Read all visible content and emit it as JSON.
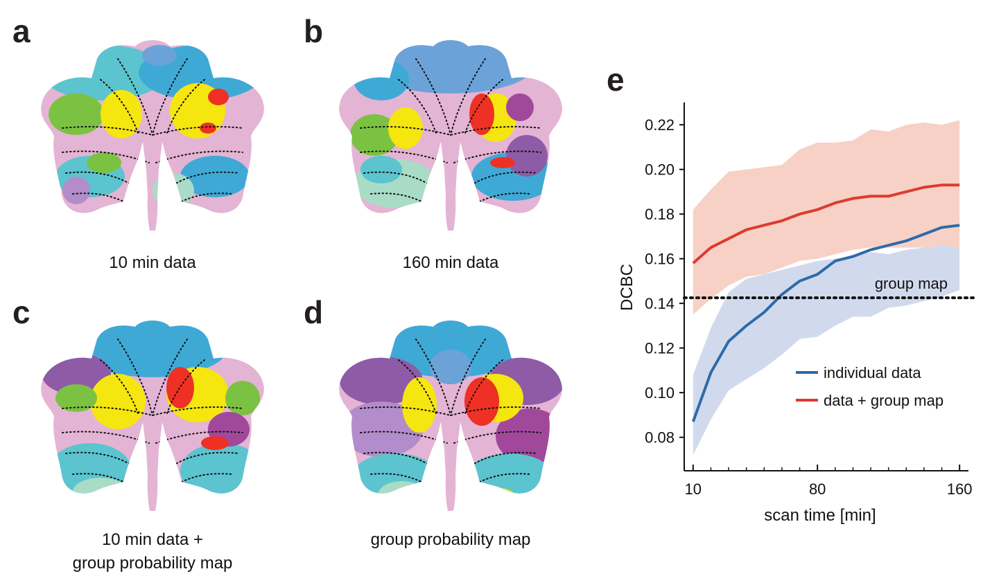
{
  "panels": {
    "a": {
      "letter": "a",
      "caption": "10 min data"
    },
    "b": {
      "letter": "b",
      "caption": "160 min data"
    },
    "c": {
      "letter": "c",
      "caption_line1": "10 min data +",
      "caption_line2": "group probability map"
    },
    "d": {
      "letter": "d",
      "caption": "group probability map"
    },
    "e": {
      "letter": "e"
    }
  },
  "parcel_colors": {
    "pink": "#e4b4d4",
    "yellow": "#f5e610",
    "red": "#ee3124",
    "green": "#7cc242",
    "teal": "#5bc4cf",
    "cyan": "#3fa9d6",
    "lightblue": "#6ba2d8",
    "mint": "#a9dcc6",
    "purple": "#8e5ba6",
    "magenta": "#a1489a",
    "darkteal": "#0f5c62",
    "lavender": "#b28ccb"
  },
  "chart_data": {
    "type": "line",
    "xlabel": "scan time [min]",
    "ylabel": "DCBC",
    "xlim": [
      5,
      165
    ],
    "ylim": [
      0.065,
      0.23
    ],
    "xticks": [
      10,
      80,
      160
    ],
    "xtick_labels": [
      "10",
      "80",
      "160"
    ],
    "yticks": [
      0.08,
      0.1,
      0.12,
      0.14,
      0.16,
      0.18,
      0.2,
      0.22
    ],
    "ytick_labels": [
      "0.08",
      "0.10",
      "0.12",
      "0.14",
      "0.16",
      "0.18",
      "0.20",
      "0.22"
    ],
    "x": [
      10,
      20,
      30,
      40,
      50,
      60,
      70,
      80,
      90,
      100,
      110,
      120,
      130,
      140,
      150,
      160
    ],
    "series": [
      {
        "name": "individual data",
        "color": "#2e6aa9",
        "band_color": "#c9d4ea",
        "values": [
          0.087,
          0.109,
          0.123,
          0.13,
          0.136,
          0.144,
          0.15,
          0.153,
          0.159,
          0.161,
          0.164,
          0.166,
          0.168,
          0.171,
          0.174,
          0.175
        ],
        "lower": [
          0.072,
          0.088,
          0.101,
          0.106,
          0.111,
          0.117,
          0.124,
          0.125,
          0.13,
          0.134,
          0.134,
          0.138,
          0.139,
          0.141,
          0.143,
          0.146
        ],
        "upper": [
          0.108,
          0.129,
          0.145,
          0.151,
          0.153,
          0.155,
          0.157,
          0.159,
          0.16,
          0.161,
          0.163,
          0.162,
          0.164,
          0.165,
          0.166,
          0.165
        ]
      },
      {
        "name": "data + group map",
        "color": "#dd3a30",
        "band_color": "#f4c1b2",
        "values": [
          0.158,
          0.165,
          0.169,
          0.173,
          0.175,
          0.177,
          0.18,
          0.182,
          0.185,
          0.187,
          0.188,
          0.188,
          0.19,
          0.192,
          0.193,
          0.193
        ],
        "lower": [
          0.135,
          0.142,
          0.148,
          0.152,
          0.153,
          0.156,
          0.159,
          0.16,
          0.162,
          0.164,
          0.165,
          0.165,
          0.165,
          0.165,
          0.166,
          0.165
        ],
        "upper": [
          0.182,
          0.191,
          0.199,
          0.2,
          0.201,
          0.202,
          0.209,
          0.212,
          0.212,
          0.213,
          0.218,
          0.217,
          0.22,
          0.221,
          0.22,
          0.222
        ]
      }
    ],
    "reference_line": {
      "label": "group map",
      "value": 0.1425,
      "style": "dotted",
      "color": "#111111"
    },
    "legend_position": "lower-right",
    "grid": false
  }
}
